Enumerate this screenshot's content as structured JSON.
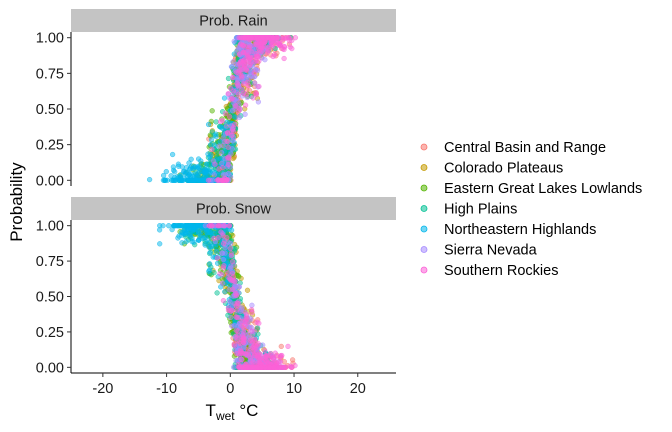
{
  "chart_data": {
    "type": "scatter",
    "title": "",
    "xlabel": {
      "main": "T",
      "sub": "wet",
      "unit": " °C"
    },
    "ylabel": "Probability",
    "xlim": [
      -25,
      26
    ],
    "ylim": [
      -0.04,
      1.04
    ],
    "x_ticks": [
      -20,
      -10,
      0,
      10,
      20
    ],
    "x_tick_labels": [
      "-20",
      "-10",
      "0",
      "10",
      "20"
    ],
    "y_ticks": [
      0,
      0.25,
      0.5,
      0.75,
      1
    ],
    "y_tick_labels": [
      "0.00",
      "0.25",
      "0.50",
      "0.75",
      "1.00"
    ],
    "grid": false,
    "legend_position": "right",
    "panels": [
      {
        "label": "Prob. Rain",
        "shape": "rising",
        "center": 0.5,
        "steepness": 1.6
      },
      {
        "label": "Prob. Snow",
        "shape": "falling",
        "center": 0.5,
        "steepness": 1.6
      }
    ],
    "series": [
      {
        "name": "Central Basin and Range",
        "color": "#F8766D",
        "x_center": 3.0,
        "x_spread": 4.5
      },
      {
        "name": "Colorado Plateaus",
        "color": "#C49A00",
        "x_center": 1.5,
        "x_spread": 4.0
      },
      {
        "name": "Eastern Great Lakes Lowlands",
        "color": "#53B400",
        "x_center": -1.0,
        "x_spread": 5.0
      },
      {
        "name": "High Plains",
        "color": "#00C094",
        "x_center": 0.0,
        "x_spread": 5.5
      },
      {
        "name": "Northeastern Highlands",
        "color": "#00B6EB",
        "x_center": -3.0,
        "x_spread": 6.5
      },
      {
        "name": "Sierra Nevada",
        "color": "#A58AFF",
        "x_center": 2.5,
        "x_spread": 4.0
      },
      {
        "name": "Southern Rockies",
        "color": "#FB61D7",
        "x_center": 3.5,
        "x_spread": 5.0
      }
    ]
  }
}
